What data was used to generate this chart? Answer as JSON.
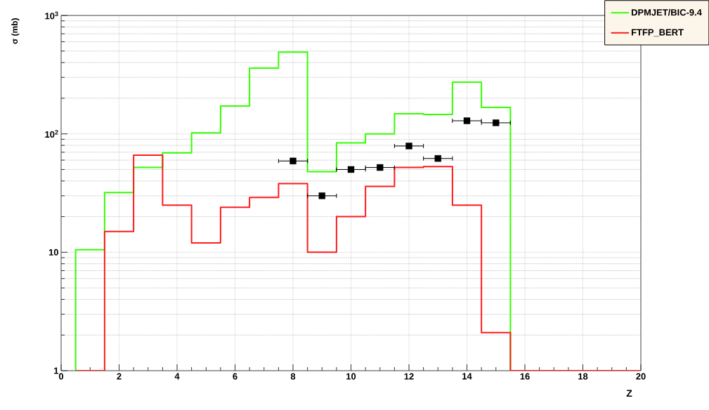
{
  "chart_data": {
    "type": "histogram",
    "xlabel": "Z",
    "ylabel": "σ (mb)",
    "bins": [
      0.5,
      1.5,
      2.5,
      3.5,
      4.5,
      5.5,
      6.5,
      7.5,
      8.5,
      9.5,
      10.5,
      11.5,
      12.5,
      13.5,
      14.5,
      15.5,
      16.5,
      17.5,
      18.5,
      19.5,
      20
    ],
    "series": [
      {
        "name": "DPMJET/BIC-9.4",
        "color": "#33ff00",
        "values": [
          10.5,
          32,
          52,
          69,
          102,
          172,
          359,
          490,
          48,
          84,
          100,
          148,
          146,
          273,
          167,
          1,
          1,
          1,
          1,
          1
        ]
      },
      {
        "name": "FTFP_BERT",
        "color": "#ff1a1a",
        "values": [
          1,
          15,
          66,
          25,
          12,
          24,
          29,
          38,
          10,
          20,
          36,
          52,
          53,
          25,
          2.1,
          1,
          1,
          1,
          1,
          1
        ]
      },
      {
        "type": "scatter",
        "color": "#000000",
        "marker": "square",
        "x": [
          8,
          9,
          10,
          11,
          12,
          13,
          14,
          15
        ],
        "values": [
          59,
          30,
          50,
          52,
          79,
          62,
          129,
          124
        ],
        "xerrors": [
          0.5,
          0.5,
          0.5,
          0.5,
          0.5,
          0.5,
          0.5,
          0.5
        ]
      }
    ],
    "xlim": [
      0,
      20
    ],
    "xticks": [
      0,
      2,
      4,
      6,
      8,
      10,
      12,
      14,
      16,
      18,
      20
    ],
    "ylim": [
      1,
      1000
    ],
    "yticks": [
      1,
      10,
      {
        "value": 100,
        "label": "10$^{2}$"
      },
      {
        "value": 1000,
        "label": "10$^{3}$"
      }
    ],
    "log": "y",
    "grid": true,
    "legend": "top right",
    "line_style": "solid"
  }
}
